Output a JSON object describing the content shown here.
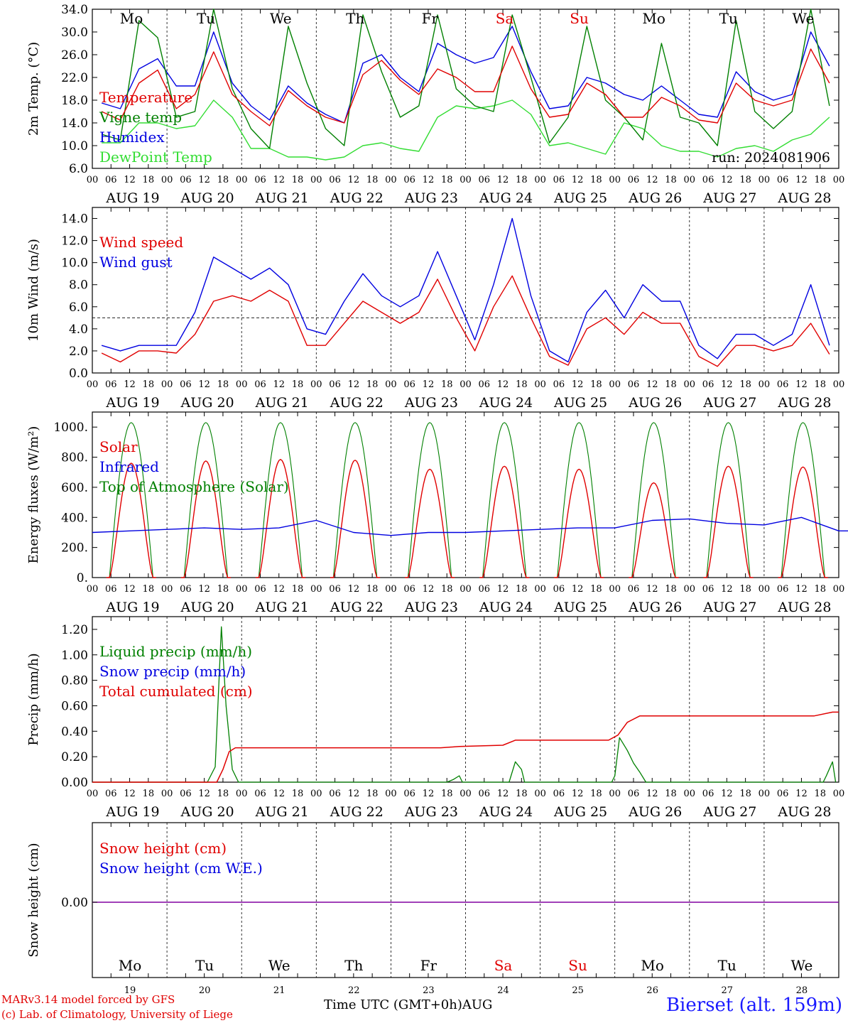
{
  "days": [
    {
      "dow": "Mo",
      "date": "19",
      "month_label": "AUG 19",
      "weekend": false
    },
    {
      "dow": "Tu",
      "date": "20",
      "month_label": "AUG 20",
      "weekend": false
    },
    {
      "dow": "We",
      "date": "21",
      "month_label": "AUG 21",
      "weekend": false
    },
    {
      "dow": "Th",
      "date": "22",
      "month_label": "AUG 22",
      "weekend": false
    },
    {
      "dow": "Fr",
      "date": "23",
      "month_label": "AUG 23",
      "weekend": false
    },
    {
      "dow": "Sa",
      "date": "24",
      "month_label": "AUG 24",
      "weekend": true
    },
    {
      "dow": "Su",
      "date": "25",
      "month_label": "AUG 25",
      "weekend": true
    },
    {
      "dow": "Mo",
      "date": "26",
      "month_label": "AUG 26",
      "weekend": false
    },
    {
      "dow": "Tu",
      "date": "27",
      "month_label": "AUG 27",
      "weekend": false
    },
    {
      "dow": "We",
      "date": "28",
      "month_label": "AUG 28",
      "weekend": false
    }
  ],
  "hour_ticks": [
    "00",
    "06",
    "12",
    "18"
  ],
  "colors": {
    "red": "#e00000",
    "green": "#008000",
    "blue": "#0000e0",
    "lightgreen": "#33dd33",
    "purple": "#8000a0",
    "weekend": "#e00000",
    "weekday": "#000000"
  },
  "footer": {
    "credit1": "MARv3.14 model forced by GFS",
    "credit2": "(c) Lab. of Climatology, University of Liege",
    "time_axis_label": "Time UTC (GMT+0h)AUG",
    "station": "Bierset (alt. 159m)"
  },
  "chart_data": [
    {
      "id": "temperature",
      "type": "line",
      "ylabel": "2m Temp. (°C)",
      "ylim": [
        6,
        34
      ],
      "yticks": [
        "6.0",
        "10.0",
        "14.0",
        "18.0",
        "22.0",
        "26.0",
        "30.0",
        "34.0"
      ],
      "annotation": "run: 2024081906",
      "legend": [
        {
          "name": "Temperature",
          "color": "#e00000"
        },
        {
          "name": "Vigne temp",
          "color": "#008000"
        },
        {
          "name": "Humidex",
          "color": "#0000e0"
        },
        {
          "name": "DewPoint Temp",
          "color": "#33dd33"
        }
      ],
      "x_step_hours": 6,
      "series": [
        {
          "name": "Temperature",
          "color": "#e00000",
          "values": [
            16,
            14.5,
            21,
            23.3,
            16.5,
            19,
            26.5,
            19,
            16,
            13.5,
            19.7,
            17,
            15,
            14,
            22.5,
            25,
            21.5,
            19,
            23.5,
            22,
            19.5,
            19.5,
            27.5,
            20,
            15,
            15.5,
            21,
            19,
            15,
            15,
            18.5,
            17,
            14.5,
            14,
            21,
            18,
            17,
            18,
            27,
            21
          ]
        },
        {
          "name": "Vigne temp",
          "color": "#008000",
          "values": [
            12,
            11,
            32,
            29,
            15,
            16,
            34,
            20,
            13,
            9.5,
            31,
            21,
            13,
            10,
            33,
            23,
            15,
            17,
            33,
            20,
            17,
            16,
            33,
            22,
            10.5,
            15,
            31,
            18,
            15,
            11,
            28,
            15,
            14,
            10,
            32,
            16,
            13,
            16,
            34,
            17
          ]
        },
        {
          "name": "Humidex",
          "color": "#0000e0",
          "values": [
            17.5,
            16.5,
            23.5,
            25.3,
            20.5,
            20.5,
            30,
            21,
            17,
            14.5,
            20.5,
            17.5,
            15.5,
            14,
            24.5,
            26,
            22,
            19.5,
            28,
            26,
            24.5,
            25.5,
            31,
            23,
            16.5,
            17,
            22,
            21,
            19,
            18,
            20.5,
            18,
            15.5,
            15,
            23,
            19.5,
            18,
            19,
            30,
            24
          ]
        },
        {
          "name": "DewPoint Temp",
          "color": "#33dd33",
          "values": [
            10.5,
            10.5,
            14,
            14,
            13,
            13.5,
            18,
            15,
            9.5,
            9.5,
            8,
            8,
            7.5,
            8,
            10,
            10.5,
            9.5,
            9,
            15,
            17,
            16.5,
            17,
            18,
            15.5,
            10,
            10.5,
            9.5,
            8.5,
            14,
            13,
            10,
            9,
            9,
            8,
            9.5,
            10,
            9,
            11,
            12,
            15
          ]
        }
      ]
    },
    {
      "id": "wind",
      "type": "line",
      "ylabel": "10m Wind (m/s)",
      "ylim": [
        0,
        15
      ],
      "yticks": [
        "0.0",
        "2.0",
        "4.0",
        "6.0",
        "8.0",
        "10.0",
        "12.0",
        "14.0"
      ],
      "reference_line": 5,
      "legend": [
        {
          "name": "Wind speed",
          "color": "#e00000"
        },
        {
          "name": "Wind gust",
          "color": "#0000e0"
        }
      ],
      "x_step_hours": 6,
      "series": [
        {
          "name": "Wind speed",
          "color": "#e00000",
          "values": [
            1.8,
            1,
            2,
            2,
            1.8,
            3.5,
            6.5,
            7,
            6.5,
            7.5,
            6.5,
            2.5,
            2.5,
            4.5,
            6.5,
            5.5,
            4.5,
            5.5,
            8.5,
            5,
            2,
            6,
            8.8,
            5,
            1.5,
            0.7,
            4,
            5,
            3.5,
            5.5,
            4.5,
            4.5,
            1.5,
            0.6,
            2.5,
            2.5,
            2,
            2.5,
            4.5,
            1.7
          ]
        },
        {
          "name": "Wind gust",
          "color": "#0000e0",
          "values": [
            2.5,
            2,
            2.5,
            2.5,
            2.5,
            5.5,
            10.5,
            9.5,
            8.5,
            9.5,
            8,
            4,
            3.5,
            6.5,
            9,
            7,
            6,
            7,
            11,
            7,
            3,
            8,
            14,
            7,
            2,
            1,
            5.5,
            7.5,
            5,
            8,
            6.5,
            6.5,
            2.5,
            1.3,
            3.5,
            3.5,
            2.5,
            3.5,
            8,
            2.5
          ]
        }
      ]
    },
    {
      "id": "energy",
      "type": "line",
      "ylabel": "Energy fluxes (W/m²)",
      "ylim": [
        0,
        1100
      ],
      "yticks": [
        "0.",
        "200.",
        "400.",
        "600.",
        "800.",
        "1000."
      ],
      "legend": [
        {
          "name": "Solar",
          "color": "#e00000"
        },
        {
          "name": "Infrared",
          "color": "#0000e0"
        },
        {
          "name": "Top of Atmosphere (Solar)",
          "color": "#008000"
        }
      ],
      "solar_noon_hour": 12.5,
      "solar_peaks": [
        760,
        775,
        785,
        780,
        720,
        740,
        720,
        630,
        740,
        735
      ],
      "toa_peak": 1030,
      "daylength_hours": 14,
      "infrared": {
        "name": "Infrared",
        "x_step_hours": 12,
        "values": [
          300,
          310,
          320,
          330,
          320,
          330,
          380,
          300,
          280,
          300,
          300,
          310,
          320,
          330,
          330,
          380,
          390,
          360,
          350,
          400,
          310,
          310,
          340,
          370,
          340,
          300,
          300,
          290,
          300,
          320,
          330,
          340,
          350,
          350
        ]
      }
    },
    {
      "id": "precip",
      "type": "line",
      "ylabel": "Precip (mm/h)",
      "ylim": [
        0,
        1.3
      ],
      "yticks": [
        "0.00",
        "0.20",
        "0.40",
        "0.60",
        "0.80",
        "1.00",
        "1.20"
      ],
      "legend": [
        {
          "name": "Liquid precip (mm/h)",
          "color": "#008000"
        },
        {
          "name": "Snow precip (mm/h)",
          "color": "#0000e0"
        },
        {
          "name": "Total cumulated (cm)",
          "color": "#e00000"
        }
      ],
      "liquid": {
        "name": "Liquid precip (mm/h)",
        "points": [
          [
            0,
            0
          ],
          [
            37,
            0
          ],
          [
            39.5,
            0.12
          ],
          [
            41.5,
            1.22
          ],
          [
            43,
            0.6
          ],
          [
            45,
            0.1
          ],
          [
            47,
            0
          ],
          [
            114,
            0
          ],
          [
            116,
            0.02
          ],
          [
            118,
            0.05
          ],
          [
            119,
            0
          ],
          [
            134,
            0
          ],
          [
            136,
            0.16
          ],
          [
            138,
            0.1
          ],
          [
            139,
            0
          ],
          [
            167,
            0
          ],
          [
            168,
            0.05
          ],
          [
            169.5,
            0.35
          ],
          [
            172,
            0.25
          ],
          [
            174,
            0.15
          ],
          [
            176,
            0.08
          ],
          [
            178,
            0
          ],
          [
            235,
            0
          ],
          [
            236,
            0.05
          ],
          [
            238,
            0.16
          ],
          [
            239,
            0
          ]
        ]
      },
      "cumulated": {
        "name": "Total cumulated (cm)",
        "points": [
          [
            0,
            0
          ],
          [
            40,
            0
          ],
          [
            42,
            0.1
          ],
          [
            44,
            0.24
          ],
          [
            46,
            0.27
          ],
          [
            112,
            0.27
          ],
          [
            118,
            0.28
          ],
          [
            132,
            0.29
          ],
          [
            136,
            0.33
          ],
          [
            166,
            0.33
          ],
          [
            169,
            0.37
          ],
          [
            172,
            0.47
          ],
          [
            176,
            0.52
          ],
          [
            232,
            0.52
          ],
          [
            238,
            0.55
          ],
          [
            240,
            0.55
          ]
        ]
      }
    },
    {
      "id": "snow",
      "type": "line",
      "ylabel": "Snow height (cm)",
      "yticks": [
        "0.00"
      ],
      "legend": [
        {
          "name": "Snow height (cm)",
          "color": "#e00000"
        },
        {
          "name": "Snow height (cm W.E.)",
          "color": "#0000e0"
        }
      ],
      "series": [
        {
          "name": "Snow height",
          "color": "#8000a0",
          "values": [
            0,
            0
          ]
        }
      ]
    }
  ]
}
